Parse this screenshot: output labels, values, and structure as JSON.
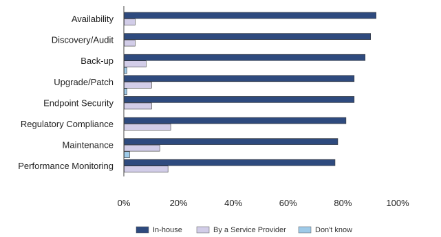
{
  "chart_data": {
    "type": "bar",
    "orientation": "horizontal",
    "categories": [
      "Availability",
      "Discovery/Audit",
      "Back-up",
      "Upgrade/Patch",
      "Endpoint Security",
      "Regulatory Compliance",
      "Maintenance",
      "Performance Monitoring"
    ],
    "series": [
      {
        "name": "In-house",
        "color": "#2e4a7e",
        "values": [
          92,
          90,
          88,
          84,
          84,
          81,
          78,
          77
        ]
      },
      {
        "name": "By a Service Provider",
        "color": "#d2cde8",
        "values": [
          4,
          4,
          8,
          10,
          10,
          17,
          13,
          16
        ]
      },
      {
        "name": "Don't know",
        "color": "#9ecae8",
        "values": [
          0,
          0,
          1,
          1,
          0,
          0,
          2,
          0
        ]
      }
    ],
    "xlim": [
      0,
      100
    ],
    "xticks": [
      "0%",
      "20%",
      "40%",
      "60%",
      "80%",
      "100%"
    ],
    "xtick_values": [
      0,
      20,
      40,
      60,
      80,
      100
    ],
    "grid": false,
    "legend_position": "bottom",
    "title": "",
    "xlabel": "",
    "ylabel": ""
  }
}
